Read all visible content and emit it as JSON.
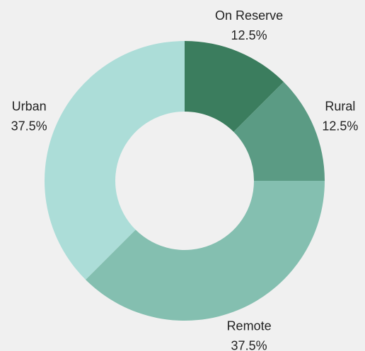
{
  "chart_data": {
    "type": "donut",
    "categories": [
      "On Reserve",
      "Rural",
      "Remote",
      "Urban"
    ],
    "values": [
      12.5,
      12.5,
      37.5,
      37.5
    ],
    "value_labels": [
      "12.5%",
      "12.5%",
      "37.5%",
      "37.5%"
    ],
    "colors": [
      "#3b7d5e",
      "#5b9b84",
      "#84bfb0",
      "#acddd8"
    ]
  }
}
